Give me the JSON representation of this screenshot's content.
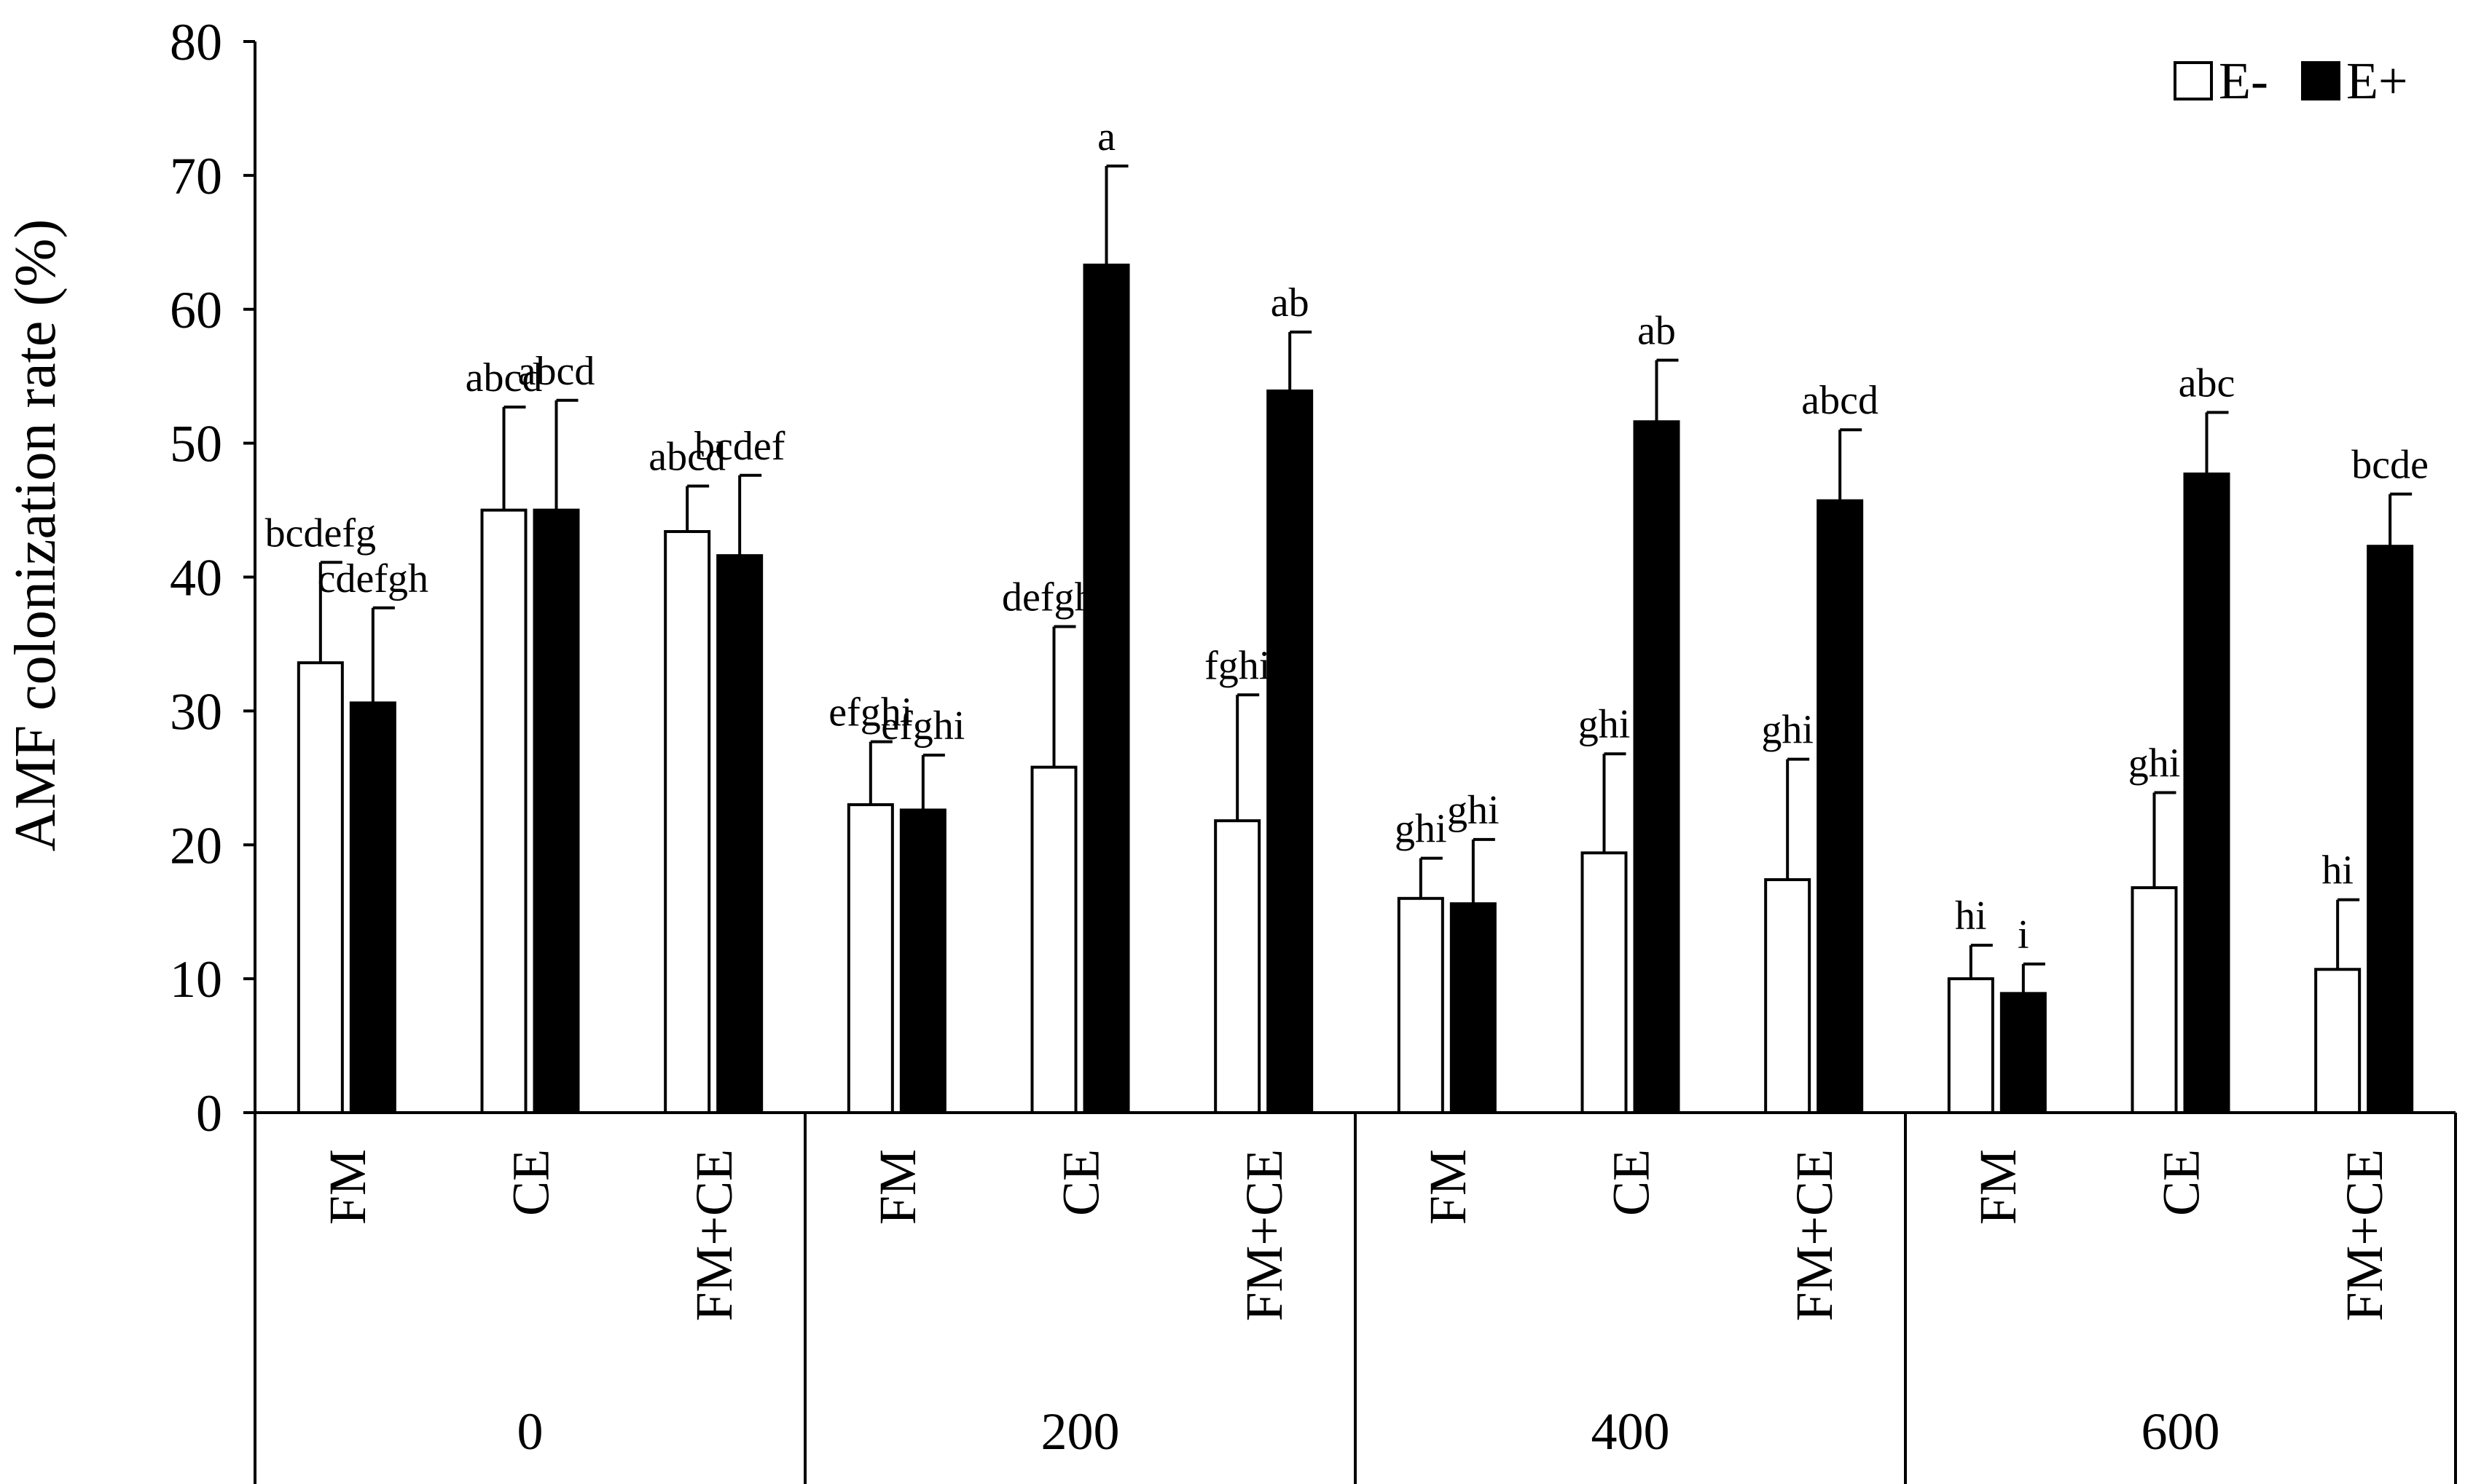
{
  "chart_data": {
    "type": "bar",
    "title": "",
    "xlabel": "",
    "ylabel": "AMF colonization rate (%)",
    "ylim": [
      0,
      80
    ],
    "yticks": [
      "0",
      "10",
      "20",
      "30",
      "40",
      "50",
      "60",
      "70",
      "80"
    ],
    "grid": false,
    "legend_position": "top-right",
    "groups": [
      {
        "label": "0",
        "categories": [
          "FM",
          "CE",
          "FM+CE"
        ]
      },
      {
        "label": "200",
        "categories": [
          "FM",
          "CE",
          "FM+CE"
        ]
      },
      {
        "label": "400",
        "categories": [
          "FM",
          "CE",
          "FM+CE"
        ]
      },
      {
        "label": "600",
        "categories": [
          "FM",
          "CE",
          "FM+CE"
        ]
      }
    ],
    "series": [
      {
        "name": "E-",
        "fill": "#ffffff",
        "values": [
          33.6,
          45.0,
          43.4,
          23.0,
          25.8,
          21.8,
          16.0,
          19.4,
          17.4,
          10.0,
          16.8,
          10.7
        ],
        "errors": [
          7.5,
          7.7,
          3.4,
          4.7,
          10.5,
          9.4,
          3.0,
          7.4,
          9.0,
          2.5,
          7.1,
          5.2
        ],
        "letters": [
          "bcdefg",
          "abcd",
          "abcd",
          "efghi",
          "defghi",
          "fghi",
          "ghi",
          "ghi",
          "ghi",
          "hi",
          "ghi",
          "hi"
        ]
      },
      {
        "name": "E+",
        "fill": "#000000",
        "values": [
          30.6,
          45.0,
          41.6,
          22.6,
          63.3,
          53.9,
          15.6,
          51.6,
          45.7,
          8.9,
          47.7,
          42.3
        ],
        "errors": [
          7.1,
          8.2,
          6.0,
          4.1,
          7.4,
          4.4,
          4.8,
          4.6,
          5.3,
          2.2,
          4.6,
          3.9
        ],
        "letters": [
          "cdefgh",
          "abcd",
          "bcdef",
          "efghi",
          "a",
          "ab",
          "ghi",
          "ab",
          "abcd",
          "i",
          "abc",
          "bcde"
        ]
      }
    ]
  }
}
